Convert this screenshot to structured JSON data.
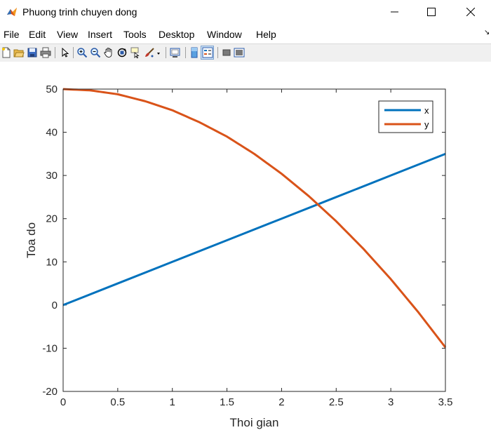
{
  "window": {
    "title": "Phuong trinh chuyen dong",
    "app_icon": "matlab-icon",
    "controls": [
      "minimize-icon",
      "maximize-icon",
      "close-icon"
    ]
  },
  "menu": {
    "items": [
      "File",
      "Edit",
      "View",
      "Insert",
      "Tools",
      "Desktop",
      "Window",
      "Help"
    ],
    "overflow_glyph": "↘"
  },
  "toolbar": {
    "icons": [
      "new-figure-icon",
      "open-file-icon",
      "save-icon",
      "print-icon",
      "edit-plot-pointer-icon",
      "zoom-in-icon",
      "zoom-out-icon",
      "pan-icon",
      "rotate-3d-icon",
      "data-cursor-icon",
      "brush-icon",
      "brush-dropdown-icon",
      "link-plot-icon",
      "insert-colorbar-icon",
      "insert-legend-icon",
      "hide-plot-tools-icon",
      "show-plot-tools-icon"
    ]
  },
  "chart_data": {
    "type": "line",
    "title": "",
    "xlabel": "Thoi gian",
    "ylabel": "Toa do",
    "xlim": [
      0,
      3.5
    ],
    "ylim": [
      -20,
      50
    ],
    "xticks": [
      0,
      0.5,
      1,
      1.5,
      2,
      2.5,
      3,
      3.5
    ],
    "xtick_labels": [
      "0",
      "0.5",
      "1",
      "1.5",
      "2",
      "2.5",
      "3",
      "3.5"
    ],
    "yticks": [
      -20,
      -10,
      0,
      10,
      20,
      30,
      40,
      50
    ],
    "ytick_labels": [
      "-20",
      "-10",
      "0",
      "10",
      "20",
      "30",
      "40",
      "50"
    ],
    "grid": false,
    "legend_position": "top-right",
    "series": [
      {
        "name": "x",
        "color": "#0072bd",
        "x": [
          0,
          0.5,
          1,
          1.5,
          2,
          2.5,
          3,
          3.5
        ],
        "values": [
          0,
          5,
          10,
          15,
          20,
          25,
          30,
          35
        ]
      },
      {
        "name": "y",
        "color": "#d95319",
        "x": [
          0,
          0.25,
          0.5,
          0.75,
          1,
          1.25,
          1.5,
          1.75,
          2,
          2.25,
          2.5,
          2.75,
          3,
          3.25,
          3.5
        ],
        "values": [
          50,
          49.7,
          48.8,
          47.2,
          45.1,
          42.3,
          39.0,
          35.0,
          30.4,
          25.2,
          19.4,
          13.0,
          6.0,
          -1.6,
          -9.8
        ]
      }
    ]
  }
}
